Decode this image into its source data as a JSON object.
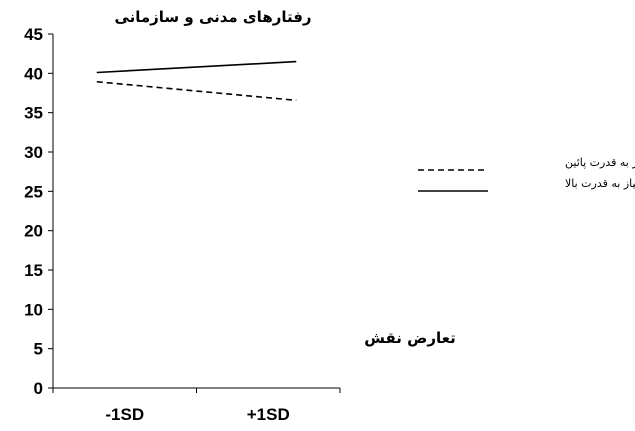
{
  "chart_data": {
    "type": "line",
    "title": "رفتارهای مدنی و سازمانی",
    "xlabel": "تعارض نقش",
    "ylabel": "",
    "categories": [
      "-1SD",
      "+1SD"
    ],
    "ylim": [
      0,
      45
    ],
    "y_ticks": [
      0,
      5,
      10,
      15,
      20,
      25,
      30,
      35,
      40,
      45
    ],
    "grid": false,
    "legend_position": "right",
    "series": [
      {
        "name": "نیاز به قدرت پائین",
        "values": [
          38.6,
          36.9
        ],
        "style": "dashed",
        "color": "#000000"
      },
      {
        "name": "نیاز به قدرت بالا",
        "values": [
          40.3,
          41.3
        ],
        "style": "solid",
        "color": "#000000"
      }
    ]
  }
}
